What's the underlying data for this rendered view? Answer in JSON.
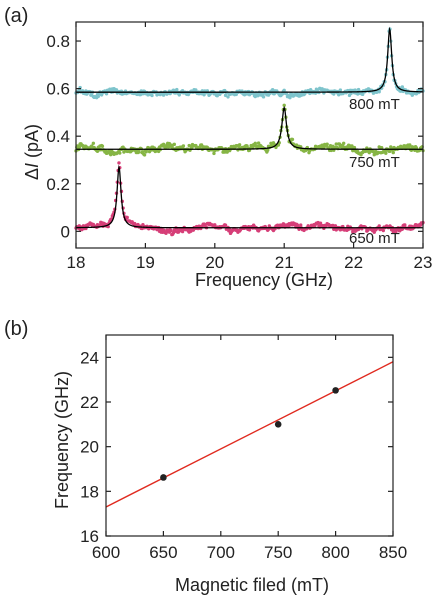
{
  "chart_data": [
    {
      "panel_label": "(a)",
      "type": "scatter",
      "xlabel": "Frequency (GHz)",
      "ylabel_delta": "Δ",
      "ylabel_italic": "I",
      "ylabel_unit": "(pA)",
      "xlim": [
        18,
        23
      ],
      "ylim": [
        -0.07,
        0.88
      ],
      "xticks": [
        18,
        19,
        20,
        21,
        22,
        23
      ],
      "yticks": [
        0,
        0.2,
        0.4,
        0.6,
        0.8
      ],
      "ytick_labels": [
        "0",
        "0.2",
        "0.4",
        "0.6",
        "0.8"
      ],
      "grid": false,
      "series": [
        {
          "label": "800 mT",
          "color": "#7ec4cc",
          "baseline": 0.585,
          "peak_x": 22.52,
          "peak_height": 0.265,
          "width": 0.035,
          "noise": 0.012,
          "label_x": 22.3,
          "label_y": 0.515
        },
        {
          "label": "750 mT",
          "color": "#86b545",
          "baseline": 0.345,
          "peak_x": 21.0,
          "peak_height": 0.175,
          "width": 0.04,
          "noise": 0.014,
          "label_x": 22.3,
          "label_y": 0.27
        },
        {
          "label": "650 mT",
          "color": "#d63f78",
          "baseline": 0.015,
          "peak_x": 18.62,
          "peak_height": 0.255,
          "width": 0.035,
          "noise": 0.012,
          "label_x": 22.3,
          "label_y": -0.05
        }
      ],
      "fit_color": "#000000"
    },
    {
      "panel_label": "(b)",
      "type": "scatter",
      "xlabel": "Magnetic filed (mT)",
      "ylabel": "Frequency (GHz)",
      "xlim": [
        600,
        850
      ],
      "ylim": [
        16,
        25
      ],
      "xticks": [
        600,
        650,
        700,
        750,
        800,
        850
      ],
      "yticks": [
        16,
        18,
        20,
        22,
        24
      ],
      "grid": false,
      "points": [
        {
          "x": 650,
          "y": 18.62
        },
        {
          "x": 750,
          "y": 21.0
        },
        {
          "x": 800,
          "y": 22.52
        }
      ],
      "fit": {
        "x": [
          600,
          850
        ],
        "y": [
          17.3,
          23.8
        ],
        "color": "#e02a1f"
      },
      "point_color": "#222222"
    }
  ]
}
